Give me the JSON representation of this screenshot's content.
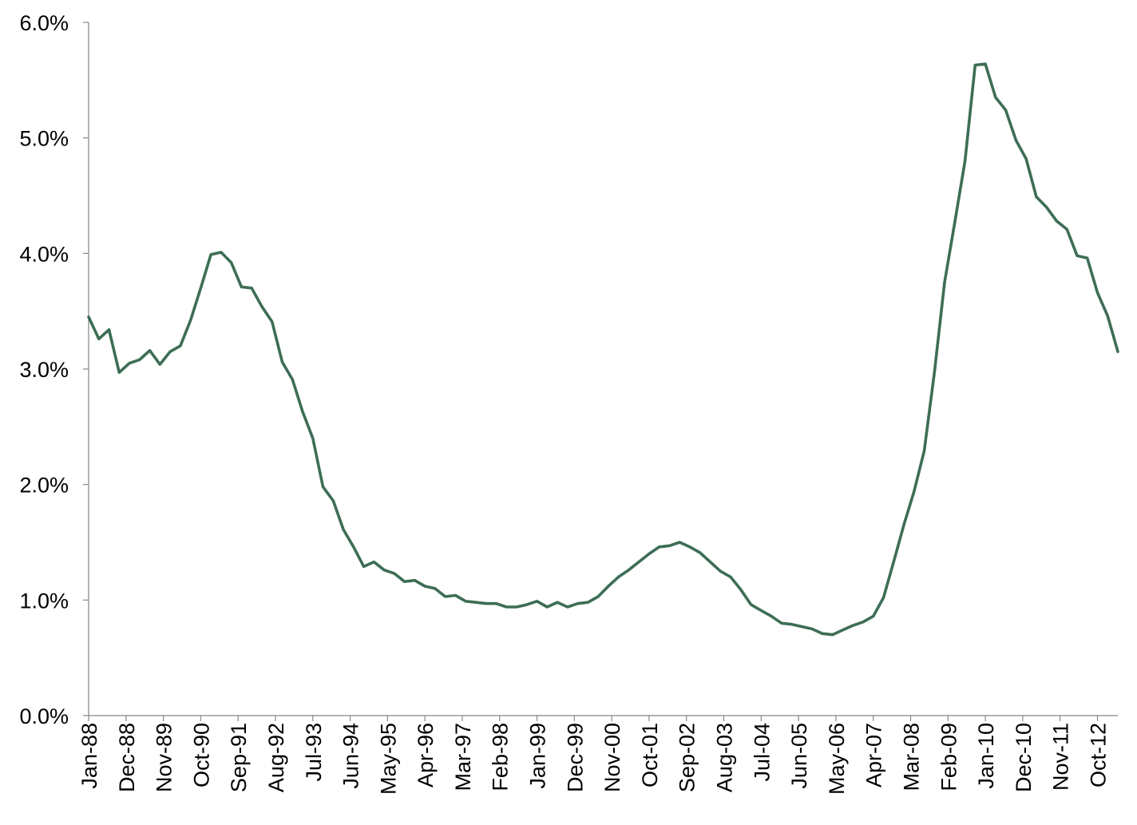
{
  "chart_data": {
    "type": "line",
    "title": "",
    "xlabel": "",
    "ylabel": "",
    "ylim": [
      0,
      6
    ],
    "y_tick_values": [
      0,
      1,
      2,
      3,
      4,
      5,
      6
    ],
    "y_tick_labels": [
      "0.0%",
      "1.0%",
      "2.0%",
      "3.0%",
      "4.0%",
      "5.0%",
      "6.0%"
    ],
    "y_unit": "%",
    "grid": false,
    "legend": "none",
    "line_color": "#3d6e55",
    "axis_color": "#868686",
    "x_tick_labels": [
      "Jan-88",
      "Dec-88",
      "Nov-89",
      "Oct-90",
      "Sep-91",
      "Aug-92",
      "Jul-93",
      "Jun-94",
      "May-95",
      "Apr-96",
      "Mar-97",
      "Feb-98",
      "Jan-99",
      "Dec-99",
      "Nov-00",
      "Oct-01",
      "Sep-02",
      "Aug-03",
      "Jul-04",
      "Jun-05",
      "May-06",
      "Apr-07",
      "Mar-08",
      "Feb-09",
      "Jan-10",
      "Dec-10",
      "Nov-11",
      "Oct-12"
    ],
    "series": [
      {
        "x": [
          "Jan-88",
          "Apr-88",
          "Jul-88",
          "Oct-88",
          "Jan-89",
          "Apr-89",
          "Jul-89",
          "Oct-89",
          "Jan-90",
          "Apr-90",
          "Jul-90",
          "Oct-90",
          "Jan-91",
          "Apr-91",
          "Jul-91",
          "Oct-91",
          "Jan-92",
          "Apr-92",
          "Jul-92",
          "Oct-92",
          "Jan-93",
          "Apr-93",
          "Jul-93",
          "Oct-93",
          "Jan-94",
          "Apr-94",
          "Jul-94",
          "Oct-94",
          "Jan-95",
          "Apr-95",
          "Jul-95",
          "Oct-95",
          "Jan-96",
          "Apr-96",
          "Jul-96",
          "Oct-96",
          "Jan-97",
          "Apr-97",
          "Jul-97",
          "Oct-97",
          "Jan-98",
          "Apr-98",
          "Jul-98",
          "Oct-98",
          "Jan-99",
          "Apr-99",
          "Jul-99",
          "Oct-99",
          "Jan-00",
          "Apr-00",
          "Jul-00",
          "Oct-00",
          "Jan-01",
          "Apr-01",
          "Jul-01",
          "Oct-01",
          "Jan-02",
          "Apr-02",
          "Jul-02",
          "Oct-02",
          "Jan-03",
          "Apr-03",
          "Jul-03",
          "Oct-03",
          "Jan-04",
          "Apr-04",
          "Jul-04",
          "Oct-04",
          "Jan-05",
          "Apr-05",
          "Jul-05",
          "Oct-05",
          "Jan-06",
          "Apr-06",
          "Jul-06",
          "Oct-06",
          "Jan-07",
          "Apr-07",
          "Jul-07",
          "Oct-07",
          "Jan-08",
          "Apr-08",
          "Jul-08",
          "Oct-08",
          "Jan-09",
          "Apr-09",
          "Jul-09",
          "Oct-09",
          "Jan-10",
          "Apr-10",
          "Jul-10",
          "Oct-10",
          "Jan-11",
          "Apr-11",
          "Jul-11",
          "Oct-11",
          "Jan-12",
          "Apr-12",
          "Jul-12",
          "Oct-12",
          "Jan-13",
          "Apr-13"
        ],
        "values": [
          3.45,
          3.26,
          3.34,
          2.97,
          3.05,
          3.08,
          3.16,
          3.04,
          3.15,
          3.2,
          3.42,
          3.7,
          3.99,
          4.01,
          3.92,
          3.71,
          3.7,
          3.54,
          3.41,
          3.06,
          2.91,
          2.63,
          2.4,
          1.98,
          1.86,
          1.61,
          1.46,
          1.29,
          1.33,
          1.26,
          1.23,
          1.16,
          1.17,
          1.12,
          1.1,
          1.03,
          1.04,
          0.99,
          0.98,
          0.97,
          0.97,
          0.94,
          0.94,
          0.96,
          0.99,
          0.94,
          0.98,
          0.94,
          0.97,
          0.98,
          1.03,
          1.12,
          1.2,
          1.26,
          1.33,
          1.4,
          1.46,
          1.47,
          1.5,
          1.46,
          1.41,
          1.33,
          1.25,
          1.2,
          1.09,
          0.96,
          0.91,
          0.86,
          0.8,
          0.79,
          0.77,
          0.75,
          0.71,
          0.7,
          0.74,
          0.78,
          0.81,
          0.86,
          1.02,
          1.33,
          1.65,
          1.94,
          2.29,
          2.97,
          3.75,
          4.27,
          4.8,
          5.63,
          5.64,
          5.35,
          5.24,
          4.98,
          4.82,
          4.49,
          4.4,
          4.28,
          4.21,
          3.98,
          3.96,
          3.66,
          3.46,
          3.15
        ]
      }
    ]
  }
}
